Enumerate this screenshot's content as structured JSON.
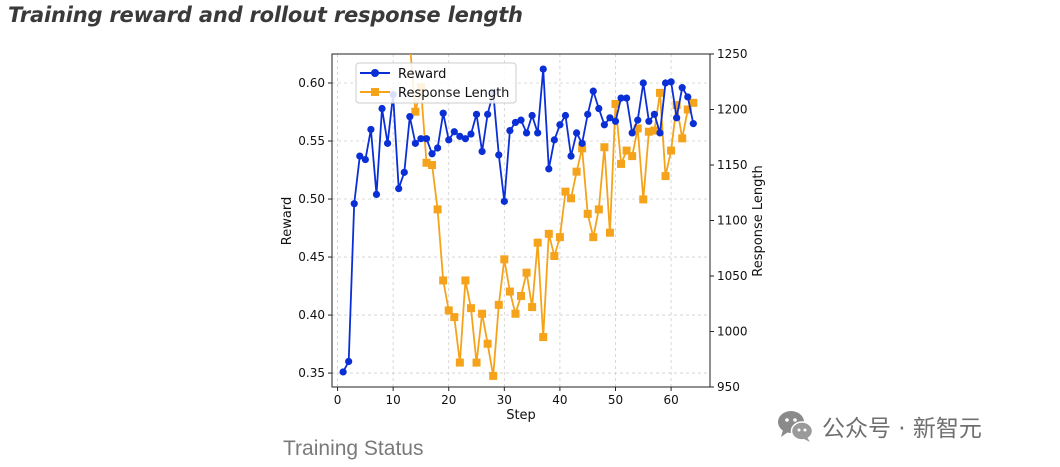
{
  "header": {
    "title": "Training reward and rollout response length"
  },
  "caption": "Training Status",
  "watermark": {
    "text": "公众号 · 新智元",
    "logo_icon": "wechat-icon"
  },
  "chart_data": {
    "type": "line",
    "xlabel": "Step",
    "ylabel_left": "Reward",
    "ylabel_right": "Response Length",
    "xlim": [
      -1,
      67
    ],
    "ylim_left": [
      0.338,
      0.625
    ],
    "ylim_right": [
      950,
      1250
    ],
    "x_ticks": [
      0,
      10,
      20,
      30,
      40,
      50,
      60
    ],
    "y_ticks_left": [
      0.35,
      0.4,
      0.45,
      0.5,
      0.55,
      0.6
    ],
    "y_tick_labels_left": [
      "0.35",
      "0.40",
      "0.45",
      "0.50",
      "0.55",
      "0.60"
    ],
    "y_ticks_right": [
      950,
      1000,
      1050,
      1100,
      1150,
      1200,
      1250
    ],
    "grid": true,
    "legend_position": "top-left",
    "series": [
      {
        "name": "Reward",
        "axis": "left",
        "color": "#0a2fd6",
        "marker": "circle",
        "x": [
          1,
          2,
          3,
          4,
          5,
          6,
          7,
          8,
          9,
          10,
          11,
          12,
          13,
          14,
          15,
          16,
          17,
          18,
          19,
          20,
          21,
          22,
          23,
          24,
          25,
          26,
          27,
          28,
          29,
          30,
          31,
          32,
          33,
          34,
          35,
          36,
          37,
          38,
          39,
          40,
          41,
          42,
          43,
          44,
          45,
          46,
          47,
          48,
          49,
          50,
          51,
          52,
          53,
          54,
          55,
          56,
          57,
          58,
          59,
          60,
          61,
          62,
          63,
          64
        ],
        "values": [
          0.351,
          0.36,
          0.496,
          0.537,
          0.534,
          0.56,
          0.504,
          0.578,
          0.548,
          0.59,
          0.509,
          0.523,
          0.571,
          0.548,
          0.552,
          0.552,
          0.539,
          0.544,
          0.574,
          0.551,
          0.558,
          0.554,
          0.552,
          0.556,
          0.573,
          0.541,
          0.573,
          0.592,
          0.538,
          0.498,
          0.559,
          0.566,
          0.568,
          0.557,
          0.572,
          0.557,
          0.612,
          0.526,
          0.551,
          0.564,
          0.572,
          0.537,
          0.557,
          0.548,
          0.573,
          0.593,
          0.578,
          0.564,
          0.57,
          0.567,
          0.587,
          0.587,
          0.557,
          0.568,
          0.6,
          0.567,
          0.573,
          0.557,
          0.6,
          0.601,
          0.57,
          0.596,
          0.588,
          0.565
        ]
      },
      {
        "name": "Response Length",
        "axis": "right",
        "color": "#f5a31b",
        "marker": "square",
        "x": [
          13,
          14,
          15,
          16,
          17,
          18,
          19,
          20,
          21,
          22,
          23,
          24,
          25,
          26,
          27,
          28,
          29,
          30,
          31,
          32,
          33,
          34,
          35,
          36,
          37,
          38,
          39,
          40,
          41,
          42,
          43,
          44,
          45,
          46,
          47,
          48,
          49,
          50,
          51,
          52,
          53,
          54,
          55,
          56,
          57,
          58,
          59,
          60,
          61,
          62,
          63,
          64
        ],
        "values": [
          1260,
          1198,
          1220,
          1152,
          1150,
          1110,
          1046,
          1019,
          1013,
          972,
          1046,
          1021,
          972,
          1016,
          989,
          960,
          1024,
          1065,
          1036,
          1016,
          1032,
          1053,
          1022,
          1080,
          995,
          1088,
          1068,
          1085,
          1126,
          1120,
          1144,
          1165,
          1106,
          1085,
          1110,
          1166,
          1089,
          1205,
          1151,
          1163,
          1158,
          1183,
          1119,
          1180,
          1181,
          1215,
          1140,
          1163,
          1204,
          1174,
          1200,
          1206
        ]
      }
    ]
  }
}
